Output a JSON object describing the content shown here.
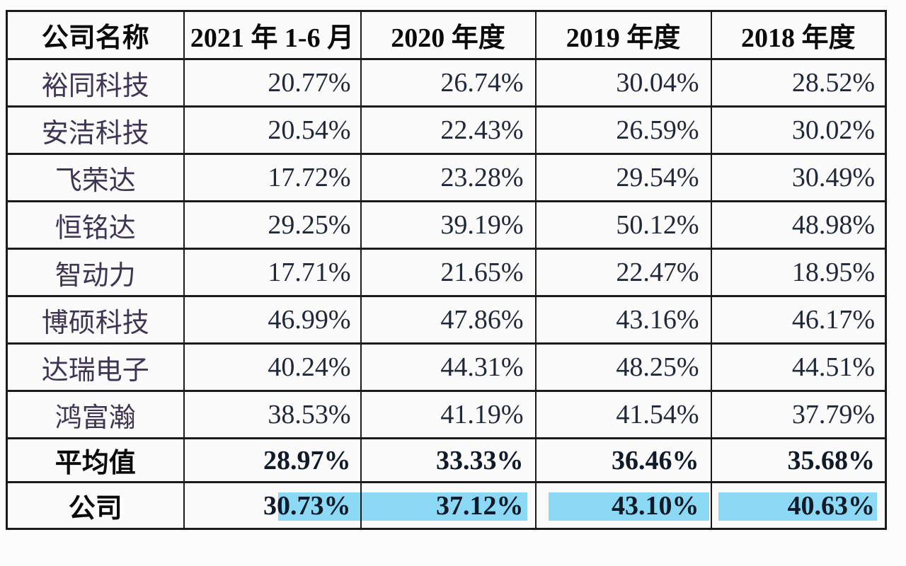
{
  "table": {
    "columns": [
      "公司名称",
      "2021 年 1-6 月",
      "2020 年度",
      "2019 年度",
      "2018 年度"
    ],
    "rows": [
      {
        "name": "裕同科技",
        "values": [
          "20.77%",
          "26.74%",
          "30.04%",
          "28.52%"
        ],
        "style": "normal"
      },
      {
        "name": "安洁科技",
        "values": [
          "20.54%",
          "22.43%",
          "26.59%",
          "30.02%"
        ],
        "style": "normal"
      },
      {
        "name": "飞荣达",
        "values": [
          "17.72%",
          "23.28%",
          "29.54%",
          "30.49%"
        ],
        "style": "normal"
      },
      {
        "name": "恒铭达",
        "values": [
          "29.25%",
          "39.19%",
          "50.12%",
          "48.98%"
        ],
        "style": "normal"
      },
      {
        "name": "智动力",
        "values": [
          "17.71%",
          "21.65%",
          "22.47%",
          "18.95%"
        ],
        "style": "normal"
      },
      {
        "name": "博硕科技",
        "values": [
          "46.99%",
          "47.86%",
          "43.16%",
          "46.17%"
        ],
        "style": "normal"
      },
      {
        "name": "达瑞电子",
        "values": [
          "40.24%",
          "44.31%",
          "48.25%",
          "44.51%"
        ],
        "style": "normal"
      },
      {
        "name": "鸿富瀚",
        "values": [
          "38.53%",
          "41.19%",
          "41.54%",
          "37.79%"
        ],
        "style": "normal"
      },
      {
        "name": "平均值",
        "values": [
          "28.97%",
          "33.33%",
          "36.46%",
          "35.68%"
        ],
        "style": "bold"
      },
      {
        "name": "公司",
        "values": [
          "30.73%",
          "37.12%",
          "43.10%",
          "40.63%"
        ],
        "style": "bold-highlight"
      }
    ],
    "colors": {
      "highlight": "#8BD9F4",
      "border": "#1B1B1B",
      "header_text": "#0A0A0A",
      "name_text": "#3E3553",
      "value_text": "#202839",
      "bold_text": "#111A29"
    }
  }
}
